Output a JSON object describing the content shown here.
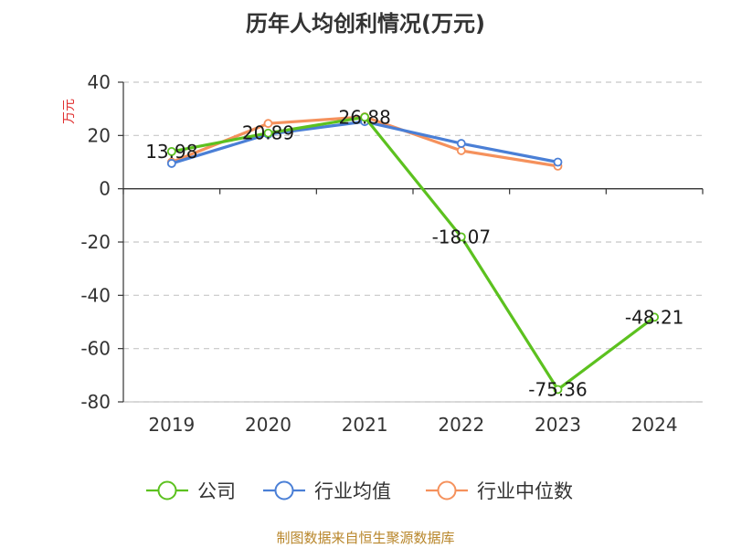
{
  "chart_data": {
    "type": "line",
    "title": "历年人均创利情况(万元)",
    "ylabel": "万元",
    "xlabel": "",
    "categories": [
      "2019",
      "2020",
      "2021",
      "2022",
      "2023",
      "2024"
    ],
    "ylim": [
      -80,
      40
    ],
    "yticks": [
      "40",
      "20",
      "0",
      "-20",
      "-40",
      "-60",
      "-80"
    ],
    "grid": true,
    "legend_placement": "bottom",
    "series": [
      {
        "name": "公司",
        "color": "#5cc11f",
        "values": [
          13.98,
          20.89,
          26.88,
          -18.07,
          -75.36,
          -48.21
        ],
        "labels": [
          "13.98",
          "20.89",
          "26.88",
          "-18.07",
          "-75.36",
          "-48.21"
        ]
      },
      {
        "name": "行业均值",
        "color": "#4a7fd6",
        "values": [
          9.5,
          20.5,
          25.2,
          17.0,
          10.0,
          null
        ]
      },
      {
        "name": "行业中位数",
        "color": "#f5915c",
        "values": [
          10.0,
          24.5,
          27.0,
          14.3,
          8.5,
          null
        ]
      }
    ],
    "source": "制图数据来自恒生聚源数据库"
  }
}
